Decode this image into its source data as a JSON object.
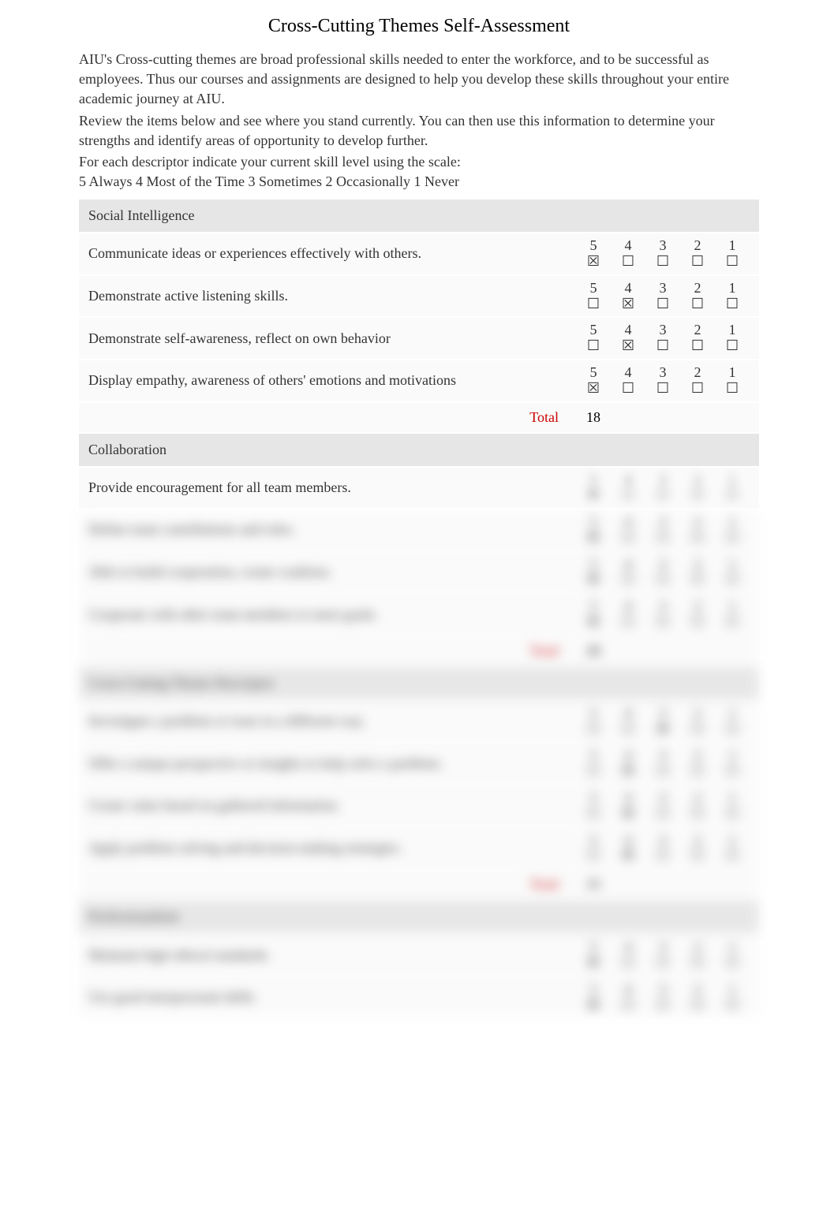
{
  "title": "Cross-Cutting Themes Self-Assessment",
  "intro": {
    "p1": "AIU's Cross-cutting themes are broad professional skills needed to enter the workforce, and to be successful as employees. Thus our courses and assignments are designed to help you develop these skills throughout your entire academic journey at AIU.",
    "p2": "Review the items below and see where you stand currently. You can then use this information to determine your strengths and identify areas of opportunity to develop further.",
    "p3": "For each descriptor indicate your current skill level using the scale:",
    "legend": "5 Always   4 Most of the Time   3 Sometimes   2 Occasionally   1 Never"
  },
  "scale_numbers": [
    "5",
    "4",
    "3",
    "2",
    "1"
  ],
  "checkbox_empty": "☐",
  "checkbox_checked": "☒",
  "total_label": "Total",
  "sections": [
    {
      "name": "Social Intelligence",
      "rows": [
        {
          "desc": "Communicate ideas or experiences effectively with others.",
          "checked_idx": 0
        },
        {
          "desc": "Demonstrate active listening skills.",
          "checked_idx": 1
        },
        {
          "desc": "Demonstrate self-awareness, reflect on own behavior",
          "checked_idx": 1
        },
        {
          "desc": "Display empathy, awareness of others' emotions and motivations",
          "checked_idx": 0
        }
      ],
      "total": "18"
    },
    {
      "name": "Collaboration",
      "rows": [
        {
          "desc": "Provide encouragement for all team members.",
          "checked_idx": 0
        },
        {
          "desc": "Define team contributions and roles.",
          "checked_idx": 0
        },
        {
          "desc": "Able to build cooperation, create coalition.",
          "checked_idx": 0
        },
        {
          "desc": "Cooperate with other team members to meet goals.",
          "checked_idx": 0
        }
      ],
      "total": "20"
    },
    {
      "name": "Cross-Cutting Theme Descriptor",
      "rows": [
        {
          "desc": "Investigate a problem or issue in a different way.",
          "checked_idx": 2
        },
        {
          "desc": "Offer a unique perspective or insights to help solve a problem.",
          "checked_idx": 1
        },
        {
          "desc": "Create value based on gathered information.",
          "checked_idx": 1
        },
        {
          "desc": "Apply problem solving and decision making strategies.",
          "checked_idx": 1
        }
      ],
      "total": "15"
    },
    {
      "name": "Professionalism",
      "rows": [
        {
          "desc": "Maintain high ethical standards.",
          "checked_idx": 0
        },
        {
          "desc": "Use good interpersonal skills.",
          "checked_idx": 0
        }
      ],
      "total": ""
    }
  ],
  "colors": {
    "header_bg": "#e6e6e6",
    "row_bg": "#fafafa",
    "total_color": "#cc0000",
    "text": "#333333"
  }
}
